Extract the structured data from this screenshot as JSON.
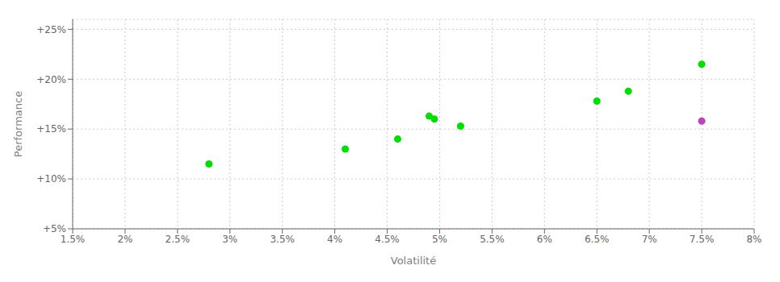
{
  "chart_data": {
    "type": "scatter",
    "xlabel": "Volatilité",
    "ylabel": "Performance",
    "xlim": [
      0.015,
      0.08
    ],
    "ylim": [
      0.05,
      0.26
    ],
    "xticks": [
      {
        "value": 0.015,
        "label": "1.5%"
      },
      {
        "value": 0.02,
        "label": "2%"
      },
      {
        "value": 0.025,
        "label": "2.5%"
      },
      {
        "value": 0.03,
        "label": "3%"
      },
      {
        "value": 0.035,
        "label": "3.5%"
      },
      {
        "value": 0.04,
        "label": "4%"
      },
      {
        "value": 0.045,
        "label": "4.5%"
      },
      {
        "value": 0.05,
        "label": "5%"
      },
      {
        "value": 0.055,
        "label": "5.5%"
      },
      {
        "value": 0.06,
        "label": "6%"
      },
      {
        "value": 0.065,
        "label": "6.5%"
      },
      {
        "value": 0.07,
        "label": "7%"
      },
      {
        "value": 0.075,
        "label": "7.5%"
      },
      {
        "value": 0.08,
        "label": "8%"
      }
    ],
    "yticks": [
      {
        "value": 0.05,
        "label": "+5%"
      },
      {
        "value": 0.1,
        "label": "+10%"
      },
      {
        "value": 0.15,
        "label": "+15%"
      },
      {
        "value": 0.2,
        "label": "+20%"
      },
      {
        "value": 0.25,
        "label": "+25%"
      }
    ],
    "grid": true,
    "series": [
      {
        "color": "#00dd00",
        "x": [
          0.028,
          0.041,
          0.046,
          0.049,
          0.0495,
          0.052,
          0.065,
          0.068,
          0.075
        ],
        "y": [
          0.115,
          0.13,
          0.14,
          0.163,
          0.16,
          0.153,
          0.178,
          0.188,
          0.215
        ]
      },
      {
        "color": "#bb44bb",
        "x": [
          0.075
        ],
        "y": [
          0.158
        ]
      }
    ]
  }
}
